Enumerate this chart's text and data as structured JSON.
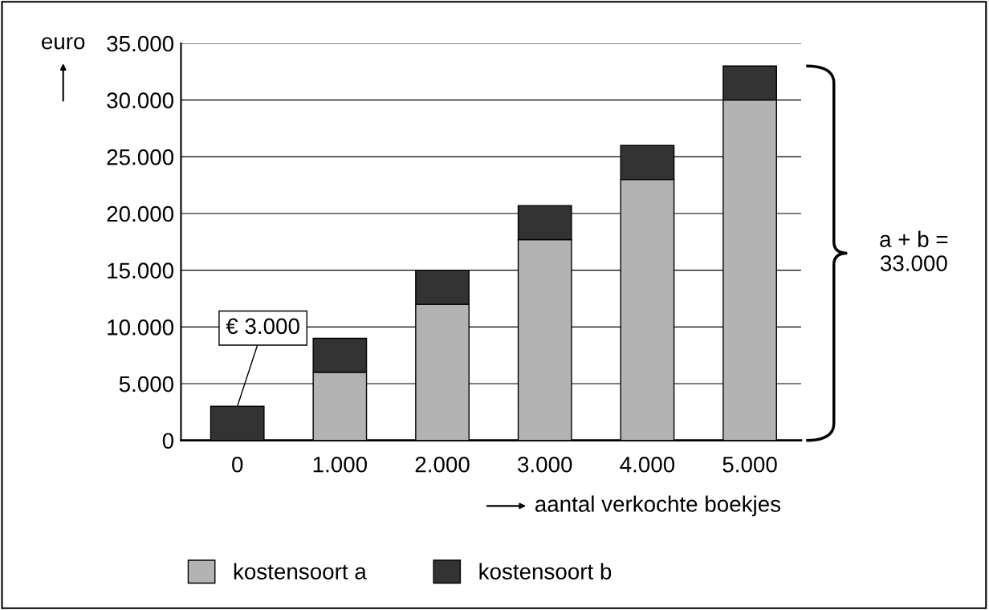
{
  "chart_data": {
    "type": "bar",
    "stacked": true,
    "categories": [
      "0",
      "1.000",
      "2.000",
      "3.000",
      "4.000",
      "5.000"
    ],
    "series": [
      {
        "name": "kostensoort a",
        "color": "#b3b3b3",
        "values": [
          0,
          6000,
          12000,
          17700,
          23000,
          30000
        ]
      },
      {
        "name": "kostensoort b",
        "color": "#333333",
        "values": [
          3000,
          3000,
          3000,
          3000,
          3000,
          3000
        ]
      }
    ],
    "xlabel": "aantal verkochte boekjes",
    "ylabel": "euro",
    "ylim": [
      0,
      35000
    ],
    "yticks": [
      {
        "value": 0,
        "label": "0"
      },
      {
        "value": 5000,
        "label": "5.000"
      },
      {
        "value": 10000,
        "label": "10.000"
      },
      {
        "value": 15000,
        "label": "15.000"
      },
      {
        "value": 20000,
        "label": "20.000"
      },
      {
        "value": 25000,
        "label": "25.000"
      },
      {
        "value": 30000,
        "label": "30.000"
      },
      {
        "value": 35000,
        "label": "35.000"
      }
    ],
    "grid": "y",
    "legend": "bottom",
    "annotations": [
      {
        "text": "€ 3.000",
        "x": "0",
        "y": 3000
      },
      "a + b =\n33.000"
    ]
  }
}
